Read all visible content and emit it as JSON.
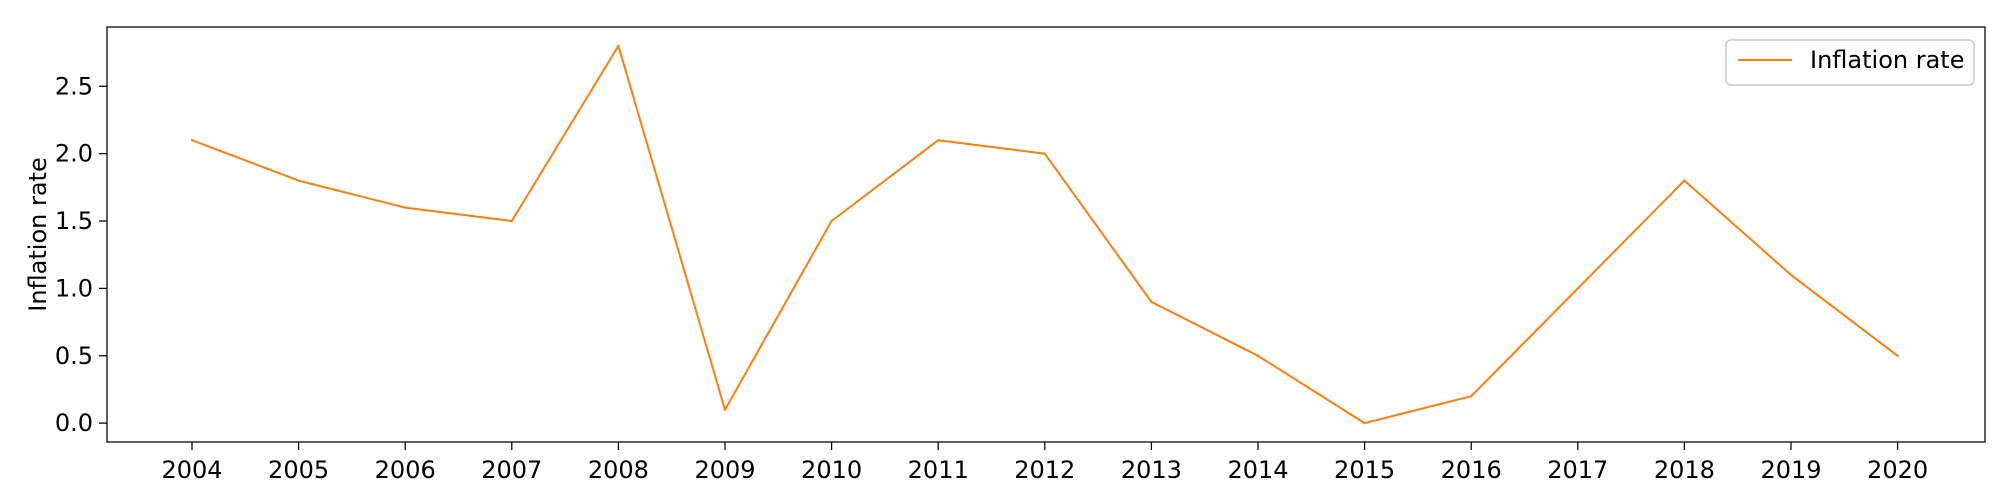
{
  "chart_data": {
    "type": "line",
    "title": "",
    "xlabel": "",
    "ylabel": "Inflation rate",
    "x": [
      "2004",
      "2005",
      "2006",
      "2007",
      "2008",
      "2009",
      "2010",
      "2011",
      "2012",
      "2013",
      "2014",
      "2015",
      "2016",
      "2017",
      "2018",
      "2019",
      "2020"
    ],
    "series": [
      {
        "name": "Inflation rate",
        "color": "#ff7f0e",
        "values": [
          2.1,
          1.8,
          1.6,
          1.5,
          2.8,
          0.1,
          1.5,
          2.1,
          2.0,
          0.9,
          0.5,
          0.0,
          0.2,
          1.0,
          1.8,
          1.1,
          0.5
        ]
      }
    ],
    "yticks": [
      "0.0",
      "0.5",
      "1.0",
      "1.5",
      "2.0",
      "2.5"
    ],
    "ylim": [
      -0.14,
      2.94
    ],
    "grid": false,
    "legend_position": "top-right"
  }
}
